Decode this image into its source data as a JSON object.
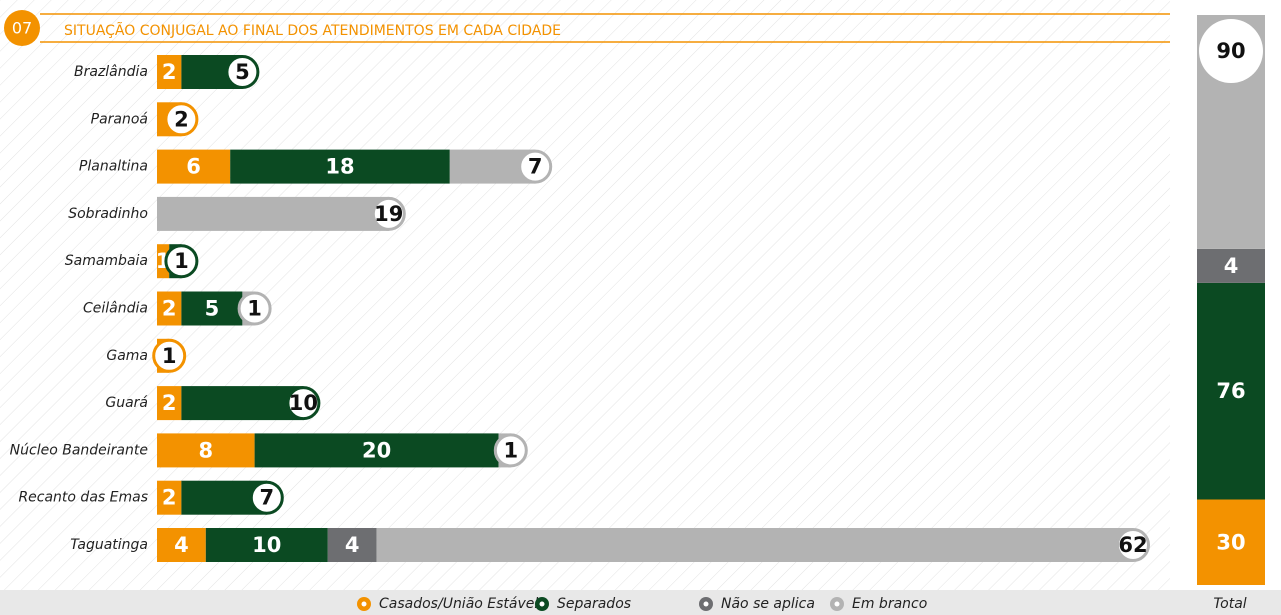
{
  "chart_data": {
    "type": "bar",
    "orientation": "horizontal",
    "stacked": true,
    "number": "07",
    "title": "SITUAÇÃO CONJUGAL AO FINAL DOS ATENDIMENTOS EM CADA CIDADE",
    "categories": [
      "Brazlândia",
      "Paranoá",
      "Planaltina",
      "Sobradinho",
      "Samambaia",
      "Ceilândia",
      "Gama",
      "Guará",
      "Núcleo Bandeirante",
      "Recanto das Emas",
      "Taguatinga"
    ],
    "series": [
      {
        "name": "Casados/União Estável",
        "color": "#f39200",
        "values": [
          2,
          2,
          6,
          null,
          1,
          2,
          1,
          2,
          8,
          2,
          4
        ],
        "total": 30
      },
      {
        "name": "Separados",
        "color": "#0b4a22",
        "values": [
          5,
          null,
          18,
          null,
          1,
          5,
          null,
          10,
          20,
          7,
          10
        ],
        "total": 76
      },
      {
        "name": "Não se aplica",
        "color": "#6d6e71",
        "values": [
          null,
          null,
          null,
          null,
          null,
          null,
          null,
          null,
          null,
          null,
          4
        ],
        "total": 4
      },
      {
        "name": "Em branco",
        "color": "#b3b3b3",
        "values": [
          null,
          null,
          7,
          19,
          null,
          1,
          null,
          null,
          1,
          null,
          62
        ],
        "total": 90
      }
    ],
    "total_label": "Total"
  }
}
